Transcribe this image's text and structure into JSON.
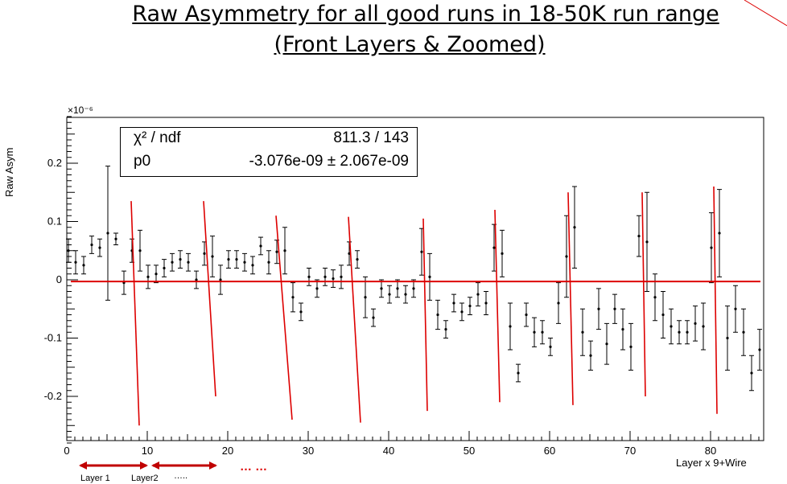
{
  "title_line1": "Raw Asymmetry for  all good runs in 18-50K run range",
  "title_line2": "(Front Layers & Zoomed)",
  "stats": {
    "label1": "χ² / ndf",
    "value1": "811.3 / 143",
    "label2": "p0",
    "value2": "-3.076e-09 ± 2.067e-09"
  },
  "annotations": {
    "layer1": "Layer 1",
    "layer2": "Layer2",
    "dots_small": "…..",
    "dots_red": "…  …"
  },
  "colors": {
    "fit_line": "#dd0000",
    "arrows": "#c00000",
    "points": "#000000"
  },
  "chart_data": {
    "type": "scatter",
    "title": "",
    "xlabel": "Layer x 9+Wire",
    "ylabel": "Raw Asym",
    "y_scale_label": "×10⁻⁶",
    "xlim": [
      0,
      86.5
    ],
    "ylim": [
      -0.28,
      0.28
    ],
    "x_ticks": [
      0,
      10,
      20,
      30,
      40,
      50,
      60,
      70,
      80
    ],
    "y_ticks": [
      -0.2,
      -0.1,
      0,
      0.1,
      0.2
    ],
    "y_tick_labels": [
      "-0.2",
      "-0.1",
      "0",
      "0.1",
      "0.2"
    ],
    "fit": {
      "name": "p0",
      "value": -0.003
    },
    "points": [
      {
        "x": 0.2,
        "y": 0.05,
        "err": 0.02
      },
      {
        "x": 1.1,
        "y": 0.03,
        "err": 0.02
      },
      {
        "x": 2.1,
        "y": 0.025,
        "err": 0.015
      },
      {
        "x": 3.1,
        "y": 0.06,
        "err": 0.015
      },
      {
        "x": 4.1,
        "y": 0.055,
        "err": 0.015
      },
      {
        "x": 5.1,
        "y": 0.08,
        "err": 0.115
      },
      {
        "x": 6.1,
        "y": 0.07,
        "err": 0.01
      },
      {
        "x": 7.1,
        "y": -0.005,
        "err": 0.02
      },
      {
        "x": 8.1,
        "y": 0.05,
        "err": 0.02
      },
      {
        "x": 9.1,
        "y": 0.05,
        "err": 0.035
      },
      {
        "x": 10.1,
        "y": 0.005,
        "err": 0.02
      },
      {
        "x": 11.1,
        "y": 0.01,
        "err": 0.015
      },
      {
        "x": 12.1,
        "y": 0.02,
        "err": 0.015
      },
      {
        "x": 13.1,
        "y": 0.03,
        "err": 0.015
      },
      {
        "x": 14.1,
        "y": 0.035,
        "err": 0.015
      },
      {
        "x": 15.1,
        "y": 0.03,
        "err": 0.015
      },
      {
        "x": 16.1,
        "y": 0.0,
        "err": 0.015
      },
      {
        "x": 17.1,
        "y": 0.045,
        "err": 0.02
      },
      {
        "x": 18.1,
        "y": 0.04,
        "err": 0.035
      },
      {
        "x": 19.1,
        "y": 0.0,
        "err": 0.025
      },
      {
        "x": 20.1,
        "y": 0.035,
        "err": 0.015
      },
      {
        "x": 21.1,
        "y": 0.035,
        "err": 0.015
      },
      {
        "x": 22.1,
        "y": 0.03,
        "err": 0.015
      },
      {
        "x": 23.1,
        "y": 0.025,
        "err": 0.015
      },
      {
        "x": 24.1,
        "y": 0.058,
        "err": 0.015
      },
      {
        "x": 25.1,
        "y": 0.03,
        "err": 0.02
      },
      {
        "x": 26.1,
        "y": 0.048,
        "err": 0.02
      },
      {
        "x": 27.1,
        "y": 0.05,
        "err": 0.04
      },
      {
        "x": 28.1,
        "y": -0.03,
        "err": 0.025
      },
      {
        "x": 29.1,
        "y": -0.055,
        "err": 0.015
      },
      {
        "x": 30.1,
        "y": 0.005,
        "err": 0.015
      },
      {
        "x": 31.1,
        "y": -0.015,
        "err": 0.015
      },
      {
        "x": 32.1,
        "y": 0.005,
        "err": 0.015
      },
      {
        "x": 33.1,
        "y": 0.002,
        "err": 0.015
      },
      {
        "x": 34.1,
        "y": 0.005,
        "err": 0.02
      },
      {
        "x": 35.1,
        "y": 0.045,
        "err": 0.02
      },
      {
        "x": 36.1,
        "y": 0.035,
        "err": 0.015
      },
      {
        "x": 37.1,
        "y": -0.03,
        "err": 0.035
      },
      {
        "x": 38.1,
        "y": -0.065,
        "err": 0.015
      },
      {
        "x": 39.1,
        "y": -0.015,
        "err": 0.015
      },
      {
        "x": 40.1,
        "y": -0.025,
        "err": 0.015
      },
      {
        "x": 41.1,
        "y": -0.015,
        "err": 0.015
      },
      {
        "x": 42.1,
        "y": -0.025,
        "err": 0.015
      },
      {
        "x": 43.1,
        "y": -0.015,
        "err": 0.015
      },
      {
        "x": 44.1,
        "y": 0.048,
        "err": 0.04
      },
      {
        "x": 45.1,
        "y": 0.005,
        "err": 0.04
      },
      {
        "x": 46.1,
        "y": -0.06,
        "err": 0.025
      },
      {
        "x": 47.1,
        "y": -0.085,
        "err": 0.015
      },
      {
        "x": 48.1,
        "y": -0.04,
        "err": 0.015
      },
      {
        "x": 49.1,
        "y": -0.055,
        "err": 0.015
      },
      {
        "x": 50.1,
        "y": -0.045,
        "err": 0.015
      },
      {
        "x": 51.1,
        "y": -0.025,
        "err": 0.02
      },
      {
        "x": 52.1,
        "y": -0.04,
        "err": 0.02
      },
      {
        "x": 53.1,
        "y": 0.055,
        "err": 0.04
      },
      {
        "x": 54.1,
        "y": 0.045,
        "err": 0.04
      },
      {
        "x": 55.1,
        "y": -0.08,
        "err": 0.04
      },
      {
        "x": 56.1,
        "y": -0.16,
        "err": 0.015
      },
      {
        "x": 57.1,
        "y": -0.06,
        "err": 0.02
      },
      {
        "x": 58.1,
        "y": -0.09,
        "err": 0.025
      },
      {
        "x": 59.1,
        "y": -0.09,
        "err": 0.02
      },
      {
        "x": 60.1,
        "y": -0.115,
        "err": 0.015
      },
      {
        "x": 61.1,
        "y": -0.04,
        "err": 0.035
      },
      {
        "x": 62.1,
        "y": 0.04,
        "err": 0.07
      },
      {
        "x": 63.1,
        "y": 0.09,
        "err": 0.07
      },
      {
        "x": 64.1,
        "y": -0.09,
        "err": 0.04
      },
      {
        "x": 65.1,
        "y": -0.13,
        "err": 0.025
      },
      {
        "x": 66.1,
        "y": -0.05,
        "err": 0.035
      },
      {
        "x": 67.1,
        "y": -0.11,
        "err": 0.035
      },
      {
        "x": 68.1,
        "y": -0.05,
        "err": 0.025
      },
      {
        "x": 69.1,
        "y": -0.085,
        "err": 0.035
      },
      {
        "x": 70.1,
        "y": -0.115,
        "err": 0.04
      },
      {
        "x": 71.1,
        "y": 0.075,
        "err": 0.035
      },
      {
        "x": 72.1,
        "y": 0.065,
        "err": 0.085
      },
      {
        "x": 73.1,
        "y": -0.03,
        "err": 0.04
      },
      {
        "x": 74.1,
        "y": -0.06,
        "err": 0.04
      },
      {
        "x": 75.1,
        "y": -0.08,
        "err": 0.03
      },
      {
        "x": 76.1,
        "y": -0.09,
        "err": 0.02
      },
      {
        "x": 77.1,
        "y": -0.09,
        "err": 0.02
      },
      {
        "x": 78.1,
        "y": -0.075,
        "err": 0.03
      },
      {
        "x": 79.1,
        "y": -0.08,
        "err": 0.04
      },
      {
        "x": 80.1,
        "y": 0.055,
        "err": 0.06
      },
      {
        "x": 81.1,
        "y": 0.08,
        "err": 0.075
      },
      {
        "x": 82.1,
        "y": -0.1,
        "err": 0.055
      },
      {
        "x": 83.1,
        "y": -0.05,
        "err": 0.04
      },
      {
        "x": 84.1,
        "y": -0.09,
        "err": 0.04
      },
      {
        "x": 85.1,
        "y": -0.16,
        "err": 0.03
      },
      {
        "x": 86.1,
        "y": -0.12,
        "err": 0.035
      }
    ],
    "annotation_lines": [
      {
        "x1": 8.0,
        "y1": 0.135,
        "x2": 9.0,
        "y2": -0.25
      },
      {
        "x1": 17.0,
        "y1": 0.135,
        "x2": 18.5,
        "y2": -0.2
      },
      {
        "x1": 26.0,
        "y1": 0.11,
        "x2": 28.0,
        "y2": -0.24
      },
      {
        "x1": 35.0,
        "y1": 0.108,
        "x2": 36.5,
        "y2": -0.245
      },
      {
        "x1": 44.3,
        "y1": 0.105,
        "x2": 44.8,
        "y2": -0.225
      },
      {
        "x1": 53.2,
        "y1": 0.12,
        "x2": 53.8,
        "y2": -0.21
      },
      {
        "x1": 62.3,
        "y1": 0.15,
        "x2": 62.9,
        "y2": -0.215
      },
      {
        "x1": 71.5,
        "y1": 0.15,
        "x2": 71.9,
        "y2": -0.2
      },
      {
        "x1": 80.4,
        "y1": 0.16,
        "x2": 80.8,
        "y2": -0.23
      }
    ]
  }
}
